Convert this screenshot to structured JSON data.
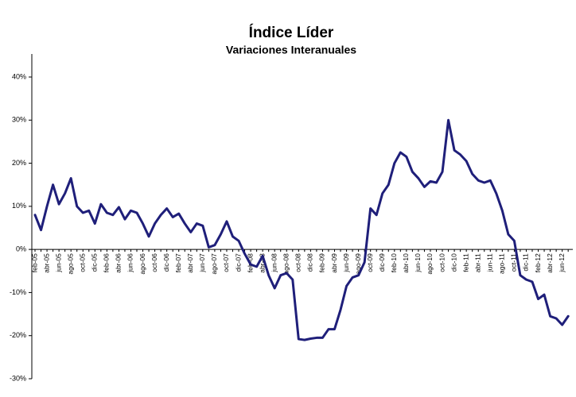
{
  "chart_data": {
    "type": "line",
    "title": "Índice Líder",
    "subtitle": "Variaciones Interanuales",
    "categories": [
      "feb-05",
      null,
      "abr-05",
      null,
      "jun-05",
      null,
      "ago-05",
      null,
      "oct-05",
      null,
      "dic-05",
      null,
      "feb-06",
      null,
      "abr-06",
      null,
      "jun-06",
      null,
      "ago-06",
      null,
      "oct-06",
      null,
      "dic-06",
      null,
      "feb-07",
      null,
      "abr-07",
      null,
      "jun-07",
      null,
      "ago-07",
      null,
      "oct-07",
      null,
      "dic-07",
      null,
      "feb-08",
      null,
      "abr-08",
      null,
      "jun-08",
      null,
      "ago-08",
      null,
      "oct-08",
      null,
      "dic-08",
      null,
      "feb-09",
      null,
      "abr-09",
      null,
      "jun-09",
      null,
      "ago-09",
      null,
      "oct-09",
      null,
      "dic-09",
      null,
      "feb-10",
      null,
      "abr-10",
      null,
      "jun-10",
      null,
      "ago-10",
      null,
      "oct-10",
      null,
      "dic-10",
      null,
      "feb-11",
      null,
      "abr-11",
      null,
      "jun-11",
      null,
      "ago-11",
      null,
      "oct-11",
      null,
      "dic-11",
      null,
      "feb-12",
      null,
      "abr-12",
      null,
      "jun-12",
      null
    ],
    "series": [
      {
        "color": "#1f1f7a",
        "values": [
          8,
          4.5,
          10,
          15,
          10.5,
          13,
          16.5,
          10,
          8.5,
          9,
          6,
          10.5,
          8.5,
          8,
          9.8,
          7,
          9,
          8.5,
          6,
          3,
          6,
          8,
          9.5,
          7.5,
          8.3,
          6,
          4,
          6,
          5.5,
          0.5,
          1,
          3.5,
          6.5,
          3,
          2,
          -1,
          -3.5,
          -4,
          -1.5,
          -6,
          -9,
          -6,
          -5.5,
          -7,
          -20.8,
          -21,
          -20.7,
          -20.5,
          -20.5,
          -18.5,
          -18.5,
          -14,
          -8.5,
          -6.5,
          -6,
          -3,
          9.5,
          8,
          13,
          15,
          20,
          22.5,
          21.5,
          18,
          16.5,
          14.5,
          15.8,
          15.5,
          18,
          30,
          23,
          22,
          20.5,
          17.5,
          16,
          15.5,
          16,
          13,
          9,
          3.5,
          2,
          -6,
          -7,
          -7.5,
          -11.5,
          -10.5,
          -15.5,
          -16,
          -17.5,
          -15.5
        ]
      }
    ],
    "ylim": [
      -30,
      40
    ],
    "yticks": [
      {
        "value": -30,
        "label": "-30%"
      },
      {
        "value": -20,
        "label": "-20%"
      },
      {
        "value": -10,
        "label": "-10%"
      },
      {
        "value": 0,
        "label": "0%"
      },
      {
        "value": 10,
        "label": "10%"
      },
      {
        "value": 20,
        "label": "20%"
      },
      {
        "value": 30,
        "label": "30%"
      },
      {
        "value": 40,
        "label": "40%"
      }
    ]
  }
}
